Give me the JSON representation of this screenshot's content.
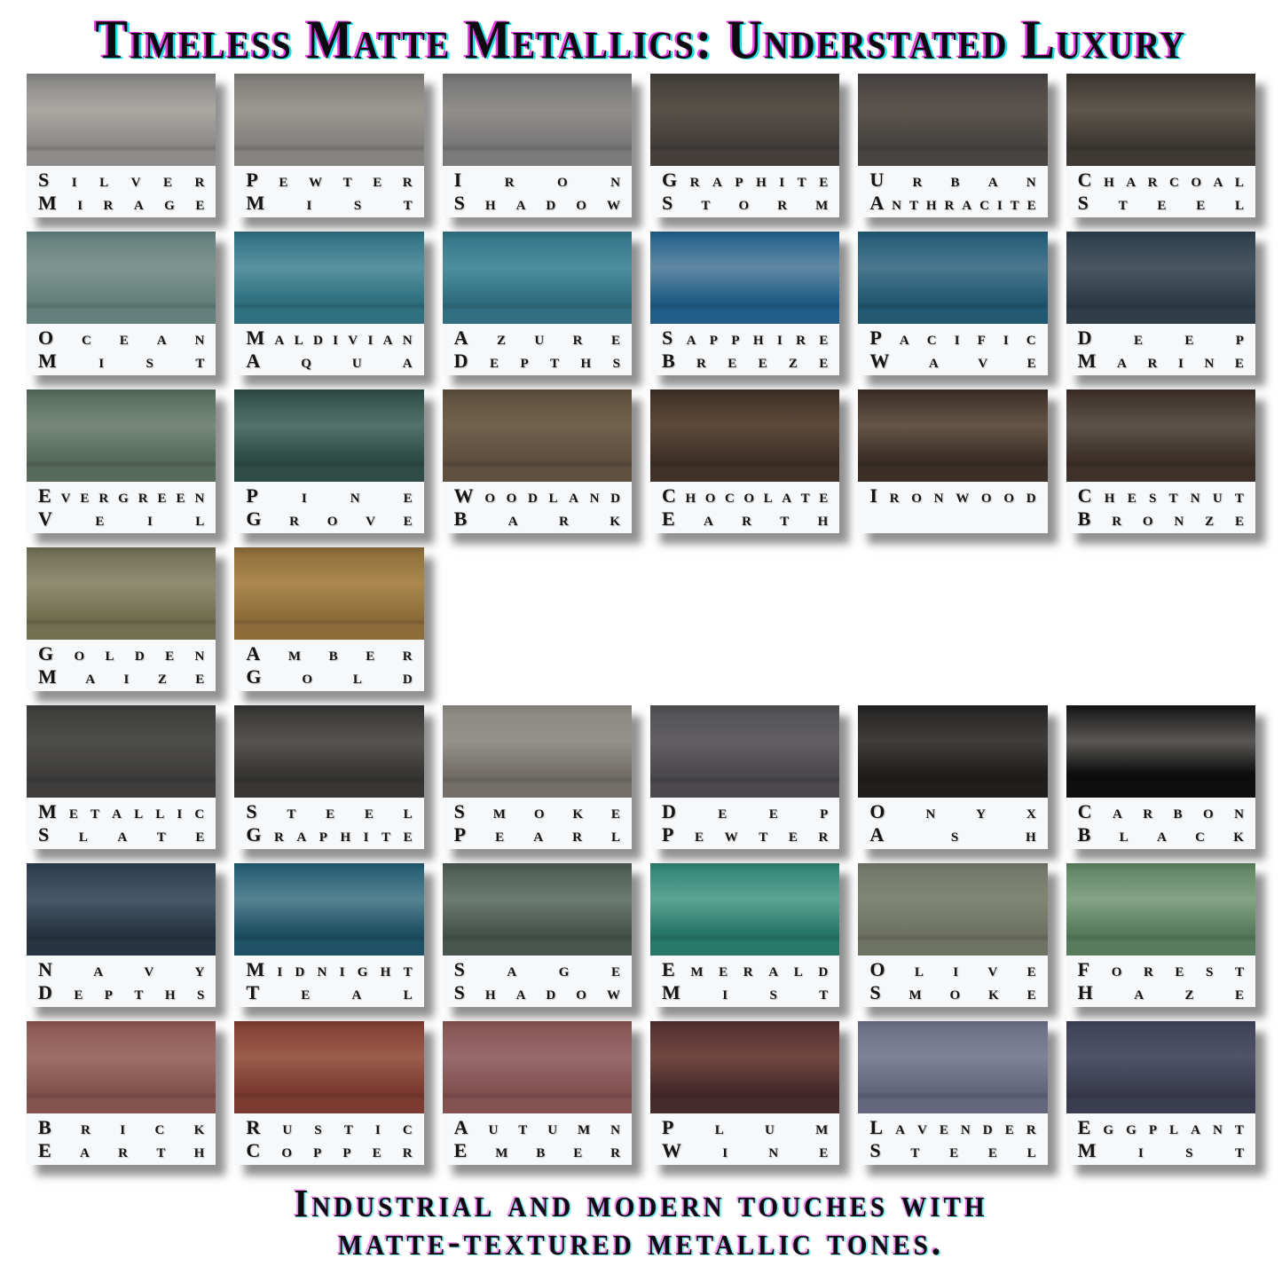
{
  "title": "Timeless Matte Metallics: Understated Luxury",
  "caption_lines": [
    "Industrial and modern touches with",
    "matte-textured metallic tones."
  ],
  "style": {
    "page_bg": "#ffffff",
    "label_bg": "#f6f8fa",
    "label_text": "#141414",
    "title_text": "#0b0b10",
    "fringe_magenta": "#f03ce8",
    "fringe_cyan": "#18dfe6",
    "tile_shadow": "rgba(55,55,55,0.55)"
  },
  "rows": [
    [
      {
        "name": "Silver Mirage",
        "top": "#838381",
        "band": "#aba8a3",
        "bottom": "#8e8c8a"
      },
      {
        "name": "Pewter Mist",
        "top": "#7d7b78",
        "band": "#9b9791",
        "bottom": "#858380"
      },
      {
        "name": "Iron Shadow",
        "top": "#707274",
        "band": "#918e8a",
        "bottom": "#7b7a7b"
      },
      {
        "name": "Graphite Storm",
        "top": "#413d38",
        "band": "#575149",
        "bottom": "#443f3b"
      },
      {
        "name": "Urban Anthracite",
        "top": "#454140",
        "band": "#5b554e",
        "bottom": "#484441"
      },
      {
        "name": "Charcoal Steel",
        "top": "#3a3530",
        "band": "#5e574e",
        "bottom": "#3e3934"
      }
    ],
    [
      {
        "name": "Ocean Mist",
        "top": "#617d7a",
        "band": "#7f9591",
        "bottom": "#65807c"
      },
      {
        "name": "Maldivian Aqua",
        "top": "#2e6e7f",
        "band": "#5992a0",
        "bottom": "#30707f"
      },
      {
        "name": "Azure Depths",
        "top": "#2f7284",
        "band": "#4e8e9e",
        "bottom": "#316f80"
      },
      {
        "name": "Sapphire Breeze",
        "top": "#1f5e8a",
        "band": "#6089a3",
        "bottom": "#215d86"
      },
      {
        "name": "Pacific Wave",
        "top": "#215a75",
        "band": "#4a788e",
        "bottom": "#225870"
      },
      {
        "name": "Deep Marine",
        "top": "#2d3d4b",
        "band": "#485761",
        "bottom": "#2f3d49"
      }
    ],
    [
      {
        "name": "Evergreen Veil",
        "top": "#54695b",
        "band": "#76897b",
        "bottom": "#576b5d"
      },
      {
        "name": "Pine Grove",
        "top": "#2c4b43",
        "band": "#52726b",
        "bottom": "#2e4b45"
      },
      {
        "name": "Woodland Bark",
        "top": "#5d4e3c",
        "band": "#71614d",
        "bottom": "#5f503f"
      },
      {
        "name": "Chocolate Earth",
        "top": "#3d2f25",
        "band": "#5d4939",
        "bottom": "#3f3127"
      },
      {
        "name": "Ironwood",
        "top": "#392d25",
        "band": "#655547",
        "bottom": "#3b2f27"
      },
      {
        "name": "Chestnut Bronze",
        "top": "#3b2e27",
        "band": "#5b534b",
        "bottom": "#3d3129"
      }
    ],
    [
      {
        "name": "Golden Maize",
        "top": "#6e6d52",
        "band": "#8f8e72",
        "bottom": "#717050"
      },
      {
        "name": "Amber Gold",
        "top": "#8c6b3a",
        "band": "#aa884f",
        "bottom": "#8e6d3b"
      }
    ],
    [
      {
        "name": "Metallic Slate",
        "top": "#3c3c3a",
        "band": "#4d4c4a",
        "bottom": "#3f3e3d"
      },
      {
        "name": "Steel Graphite",
        "top": "#343332",
        "band": "#565451",
        "bottom": "#373634"
      },
      {
        "name": "Smoke Pearl",
        "top": "#8c8882",
        "band": "#95918b",
        "bottom": "#736f68"
      },
      {
        "name": "Deep Pewter",
        "top": "#515054",
        "band": "#615f63",
        "bottom": "#4b494e"
      },
      {
        "name": "Onyx Ash",
        "top": "#232221",
        "band": "#403e3c",
        "bottom": "#201f1e"
      },
      {
        "name": "Carbon Black",
        "top": "#141414",
        "band": "#5a5856",
        "bottom": "#0e0e0e"
      }
    ],
    [
      {
        "name": "Navy Depths",
        "top": "#2c3b4d",
        "band": "#485868",
        "bottom": "#273543"
      },
      {
        "name": "Midnight Teal",
        "top": "#205a6f",
        "band": "#568392",
        "bottom": "#1f5164"
      },
      {
        "name": "Sage Shadow",
        "top": "#4a5950",
        "band": "#6c7b71",
        "bottom": "#47554d"
      },
      {
        "name": "Emerald Mist",
        "top": "#2d8272",
        "band": "#5ca493",
        "bottom": "#287868"
      },
      {
        "name": "Olive Smoke",
        "top": "#73776b",
        "band": "#818573",
        "bottom": "#6f7364"
      },
      {
        "name": "Forest Haze",
        "top": "#5d8261",
        "band": "#83a485",
        "bottom": "#577b5c"
      }
    ],
    [
      {
        "name": "Brick Earth",
        "top": "#8c5651",
        "band": "#9d6f67",
        "bottom": "#85534e"
      },
      {
        "name": "Rustic Copper",
        "top": "#7d3c31",
        "band": "#9b5d4d",
        "bottom": "#7b3b31"
      },
      {
        "name": "Autumn Ember",
        "top": "#875251",
        "band": "#986a6c",
        "bottom": "#835150"
      },
      {
        "name": "Plum Wine",
        "top": "#522e2f",
        "band": "#704840",
        "bottom": "#472a2c"
      },
      {
        "name": "Lavender Steel",
        "top": "#6b6e84",
        "band": "#7f8297",
        "bottom": "#63667c"
      },
      {
        "name": "Eggplant Mist",
        "top": "#3f4256",
        "band": "#505369",
        "bottom": "#3a3d4f"
      }
    ]
  ]
}
